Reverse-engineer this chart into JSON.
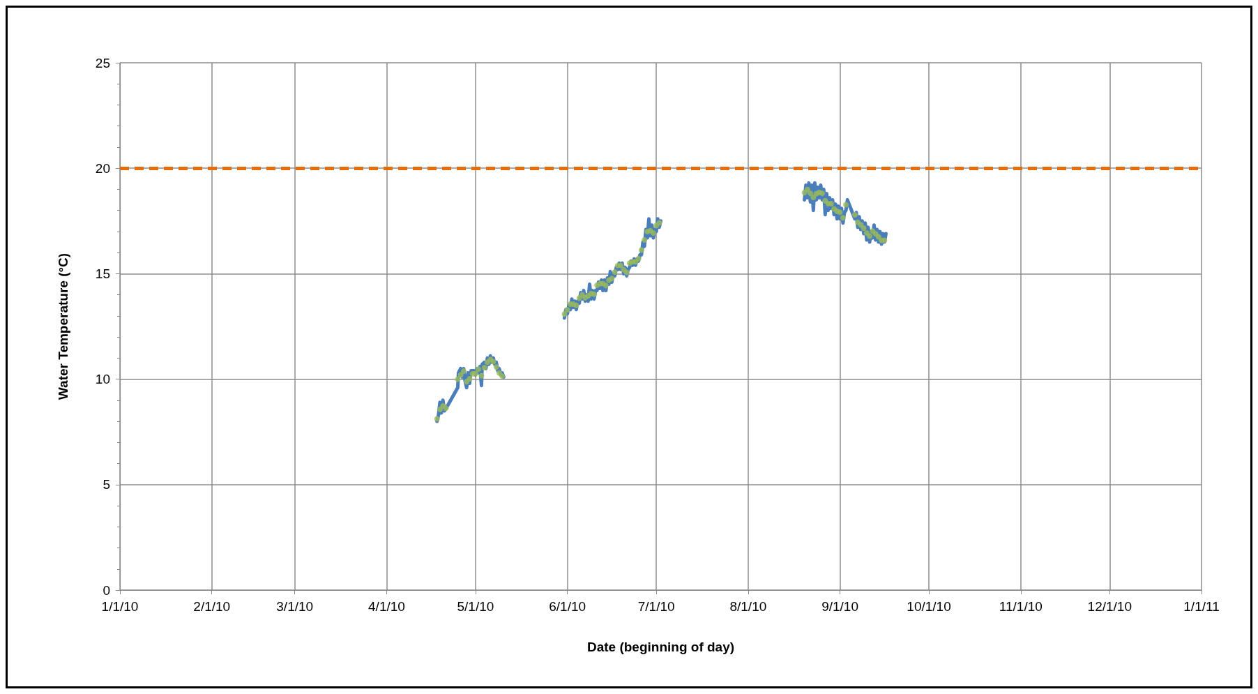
{
  "chart_data": {
    "type": "line",
    "xlabel": "Date (beginning of day)",
    "ylabel": "Water Temperature (°C)",
    "xlim": [
      "2010-01-01",
      "2011-01-01"
    ],
    "xticks": [
      {
        "value": "2010-01-01",
        "label": "1/1/10"
      },
      {
        "value": "2010-02-01",
        "label": "2/1/10"
      },
      {
        "value": "2010-03-01",
        "label": "3/1/10"
      },
      {
        "value": "2010-04-01",
        "label": "4/1/10"
      },
      {
        "value": "2010-05-01",
        "label": "5/1/10"
      },
      {
        "value": "2010-06-01",
        "label": "6/1/10"
      },
      {
        "value": "2010-07-01",
        "label": "7/1/10"
      },
      {
        "value": "2010-08-01",
        "label": "8/1/10"
      },
      {
        "value": "2010-09-01",
        "label": "9/1/10"
      },
      {
        "value": "2010-10-01",
        "label": "10/1/10"
      },
      {
        "value": "2010-11-01",
        "label": "11/1/10"
      },
      {
        "value": "2010-12-01",
        "label": "12/1/10"
      },
      {
        "value": "2011-01-01",
        "label": "1/1/11"
      }
    ],
    "ylim": [
      0,
      25
    ],
    "yticks": [
      0,
      5,
      10,
      15,
      20,
      25
    ],
    "grid": true,
    "ref_lines": [
      {
        "axis": "y",
        "value": 20,
        "color": "#e46c0a",
        "line_style": "dashed"
      }
    ],
    "series": [
      {
        "color": "#4a7ebb",
        "line_style": "solid",
        "marker": "none",
        "x": [
          "2010-04-18T00:00",
          "2010-04-18T12:00",
          "2010-04-19T00:00",
          "2010-04-19T12:00",
          "2010-04-20T00:00",
          "2010-04-20T12:00",
          "2010-04-21T00:00",
          "2010-04-25T00:00",
          "2010-04-25T06:00",
          "2010-04-26T00:00",
          "2010-04-26T12:00",
          "2010-04-27T00:00",
          "2010-04-27T12:00",
          "2010-04-28T00:00",
          "2010-04-28T12:00",
          "2010-04-29T00:00",
          "2010-04-29T12:00",
          "2010-04-30T12:00",
          "2010-05-01T00:00",
          "2010-05-01T12:00",
          "2010-05-02T00:00",
          "2010-05-02T12:00",
          "2010-05-03T00:00",
          "2010-05-03T06:00",
          "2010-05-04T00:00",
          "2010-05-04T12:00",
          "2010-05-05T00:00",
          "2010-05-05T12:00",
          "2010-05-06T00:00",
          "2010-05-06T12:00",
          "2010-05-07T00:00",
          "2010-05-07T12:00",
          "2010-05-08T00:00",
          "2010-05-08T12:00",
          "2010-05-09T00:00",
          "2010-05-09T12:00",
          "2010-05-10T00:00",
          "2010-05-10T12:00",
          "2010-05-20T00:00",
          "2010-05-31T00:00",
          "2010-05-31T12:00",
          "2010-06-01T00:00",
          "2010-06-01T12:00",
          "2010-06-02T00:00",
          "2010-06-02T12:00",
          "2010-06-03T00:00",
          "2010-06-03T12:00",
          "2010-06-04T00:00",
          "2010-06-04T12:00",
          "2010-06-05T00:00",
          "2010-06-05T12:00",
          "2010-06-06T00:00",
          "2010-06-06T12:00",
          "2010-06-07T00:00",
          "2010-06-07T12:00",
          "2010-06-08T00:00",
          "2010-06-08T12:00",
          "2010-06-09T00:00",
          "2010-06-09T12:00",
          "2010-06-10T00:00",
          "2010-06-10T12:00",
          "2010-06-11T00:00",
          "2010-06-11T12:00",
          "2010-06-12T00:00",
          "2010-06-12T12:00",
          "2010-06-13T00:00",
          "2010-06-13T12:00",
          "2010-06-14T00:00",
          "2010-06-14T12:00",
          "2010-06-15T00:00",
          "2010-06-15T12:00",
          "2010-06-16T00:00",
          "2010-06-16T12:00",
          "2010-06-17T00:00",
          "2010-06-17T12:00",
          "2010-06-18T00:00",
          "2010-06-18T12:00",
          "2010-06-19T00:00",
          "2010-06-19T12:00",
          "2010-06-20T00:00",
          "2010-06-20T12:00",
          "2010-06-21T00:00",
          "2010-06-21T12:00",
          "2010-06-22T00:00",
          "2010-06-22T12:00",
          "2010-06-23T00:00",
          "2010-06-23T12:00",
          "2010-06-24T00:00",
          "2010-06-24T12:00",
          "2010-06-25T00:00",
          "2010-06-25T12:00",
          "2010-06-26T00:00",
          "2010-06-26T12:00",
          "2010-06-27T00:00",
          "2010-06-27T12:00",
          "2010-06-28T00:00",
          "2010-06-28T12:00",
          "2010-06-29T00:00",
          "2010-06-29T12:00",
          "2010-06-30T00:00",
          "2010-06-30T12:00",
          "2010-07-01T00:00",
          "2010-07-01T12:00",
          "2010-07-02T00:00",
          "2010-07-02T12:00",
          "2010-08-01T00:00",
          "2010-08-20T00:00",
          "2010-08-20T12:00",
          "2010-08-21T00:00",
          "2010-08-21T12:00",
          "2010-08-22T00:00",
          "2010-08-22T12:00",
          "2010-08-23T00:00",
          "2010-08-23T12:00",
          "2010-08-24T00:00",
          "2010-08-24T12:00",
          "2010-08-25T00:00",
          "2010-08-25T12:00",
          "2010-08-26T00:00",
          "2010-08-26T12:00",
          "2010-08-27T00:00",
          "2010-08-27T12:00",
          "2010-08-28T00:00",
          "2010-08-28T12:00",
          "2010-08-29T00:00",
          "2010-08-29T12:00",
          "2010-08-30T00:00",
          "2010-08-30T12:00",
          "2010-08-31T00:00",
          "2010-08-31T12:00",
          "2010-09-01T00:00",
          "2010-09-01T12:00",
          "2010-09-02T00:00",
          "2010-09-02T12:00",
          "2010-09-03T00:00",
          "2010-09-03T12:00",
          "2010-09-06T00:00",
          "2010-09-06T12:00",
          "2010-09-07T00:00",
          "2010-09-07T12:00",
          "2010-09-08T00:00",
          "2010-09-08T12:00",
          "2010-09-09T00:00",
          "2010-09-09T12:00",
          "2010-09-10T00:00",
          "2010-09-10T12:00",
          "2010-09-11T00:00",
          "2010-09-11T12:00",
          "2010-09-12T00:00",
          "2010-09-12T12:00",
          "2010-09-13T00:00",
          "2010-09-13T12:00",
          "2010-09-14T00:00",
          "2010-09-14T12:00",
          "2010-09-15T00:00",
          "2010-09-15T12:00",
          "2010-09-16T00:00",
          "2010-09-16T12:00"
        ],
        "values": [
          8.0,
          8.3,
          8.9,
          8.4,
          9.0,
          8.5,
          8.6,
          9.6,
          10.3,
          10.5,
          10.1,
          10.5,
          9.9,
          9.6,
          10.3,
          9.8,
          10.4,
          10.4,
          10.2,
          10.5,
          10.3,
          10.6,
          9.7,
          10.7,
          10.8,
          10.5,
          11.0,
          10.7,
          11.1,
          10.8,
          11.0,
          10.7,
          10.8,
          10.4,
          10.5,
          10.2,
          10.3,
          10.1,
          null,
          12.9,
          13.3,
          13.1,
          13.5,
          13.3,
          13.8,
          13.4,
          13.7,
          13.3,
          13.7,
          13.6,
          14.1,
          13.8,
          14.2,
          13.7,
          14.0,
          13.7,
          14.5,
          13.8,
          14.2,
          13.8,
          14.2,
          14.2,
          14.6,
          14.3,
          14.7,
          14.2,
          14.7,
          14.2,
          14.8,
          14.5,
          15.1,
          14.6,
          15.0,
          14.9,
          15.3,
          15.2,
          15.5,
          15.2,
          15.5,
          15.0,
          15.3,
          14.9,
          15.2,
          15.3,
          15.6,
          15.4,
          15.7,
          15.4,
          15.7,
          15.6,
          15.9,
          15.9,
          16.5,
          16.3,
          17.1,
          16.7,
          17.6,
          16.8,
          17.3,
          16.7,
          17.1,
          17.0,
          17.6,
          17.2,
          17.5,
          null,
          18.5,
          19.2,
          18.6,
          19.3,
          18.4,
          19.2,
          18.0,
          19.3,
          18.5,
          19.1,
          18.6,
          19.2,
          18.5,
          19.0,
          17.8,
          18.8,
          18.0,
          18.6,
          18.1,
          18.5,
          17.8,
          18.3,
          17.6,
          18.2,
          17.6,
          18.1,
          17.4,
          17.9,
          18.0,
          18.5,
          17.6,
          17.9,
          17.2,
          17.7,
          17.1,
          17.5,
          16.9,
          17.4,
          16.6,
          17.2,
          16.5,
          17.0,
          16.7,
          17.3,
          16.6,
          17.1,
          16.5,
          17.0,
          16.4,
          16.9,
          16.5,
          16.9
        ]
      },
      {
        "type": "scatter",
        "color": "#9bbb59",
        "marker": "circle",
        "x": [
          "2010-04-18",
          "2010-04-19",
          "2010-04-20",
          "2010-04-21",
          "2010-04-25",
          "2010-04-26",
          "2010-04-27",
          "2010-04-28",
          "2010-04-29",
          "2010-04-30",
          "2010-05-01",
          "2010-05-02",
          "2010-05-03",
          "2010-05-04",
          "2010-05-05",
          "2010-05-06",
          "2010-05-07",
          "2010-05-08",
          "2010-05-09",
          "2010-05-10",
          "2010-05-31",
          "2010-06-01",
          "2010-06-02",
          "2010-06-03",
          "2010-06-04",
          "2010-06-05",
          "2010-06-06",
          "2010-06-07",
          "2010-06-08",
          "2010-06-09",
          "2010-06-10",
          "2010-06-11",
          "2010-06-12",
          "2010-06-13",
          "2010-06-14",
          "2010-06-15",
          "2010-06-16",
          "2010-06-17",
          "2010-06-18",
          "2010-06-19",
          "2010-06-20",
          "2010-06-21",
          "2010-06-22",
          "2010-06-23",
          "2010-06-24",
          "2010-06-25",
          "2010-06-26",
          "2010-06-27",
          "2010-06-28",
          "2010-06-29",
          "2010-06-30",
          "2010-07-01",
          "2010-07-02",
          "2010-08-20",
          "2010-08-21",
          "2010-08-22",
          "2010-08-23",
          "2010-08-24",
          "2010-08-25",
          "2010-08-26",
          "2010-08-27",
          "2010-08-28",
          "2010-08-29",
          "2010-08-30",
          "2010-08-31",
          "2010-09-01",
          "2010-09-02",
          "2010-09-03",
          "2010-09-06",
          "2010-09-07",
          "2010-09-08",
          "2010-09-09",
          "2010-09-10",
          "2010-09-11",
          "2010-09-12",
          "2010-09-13",
          "2010-09-14",
          "2010-09-15",
          "2010-09-16"
        ],
        "values": [
          8.12,
          8.56,
          8.73,
          8.62,
          10.0,
          10.2,
          10.38,
          9.88,
          10.02,
          10.25,
          10.27,
          10.47,
          10.16,
          10.55,
          10.8,
          10.93,
          10.83,
          10.57,
          10.29,
          10.14,
          13.09,
          13.29,
          13.56,
          13.56,
          13.5,
          13.84,
          14.0,
          13.86,
          13.95,
          14.06,
          14.03,
          14.45,
          14.53,
          14.53,
          14.44,
          14.69,
          14.77,
          15.08,
          15.39,
          15.39,
          15.19,
          15.06,
          15.5,
          15.57,
          15.57,
          15.72,
          16.12,
          16.6,
          17.0,
          17.04,
          16.93,
          17.28,
          17.41,
          18.84,
          18.99,
          18.81,
          18.62,
          18.79,
          18.86,
          18.81,
          18.46,
          18.32,
          18.32,
          18.07,
          17.96,
          17.91,
          17.65,
          18.27,
          17.79,
          17.44,
          17.32,
          17.16,
          16.93,
          16.78,
          17.02,
          16.89,
          16.75,
          16.58,
          16.58
        ]
      }
    ]
  }
}
